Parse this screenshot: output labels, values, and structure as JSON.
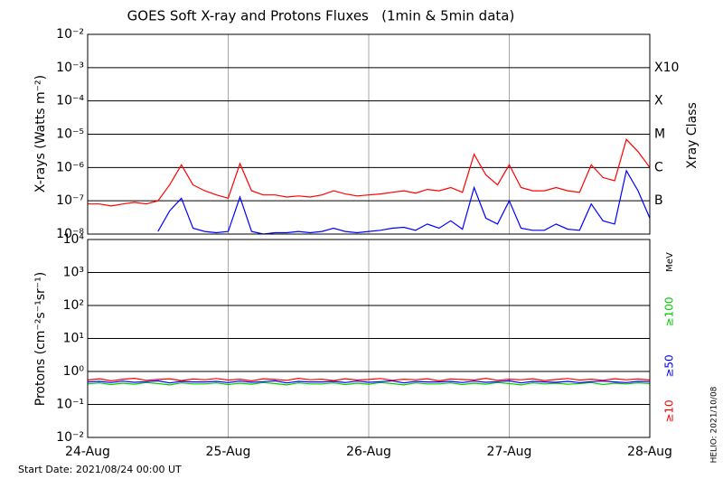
{
  "chart_data": [
    {
      "type": "line",
      "title": "GOES Soft X-ray and Protons Fluxes   (1min & 5min data)",
      "y_label": "X-rays (Watts m⁻²)",
      "y2_label": "Xray Class",
      "log_y": true,
      "grid": true,
      "xlim": [
        "2021-08-24 00:00",
        "2021-08-28 00:00"
      ],
      "xticks": [
        "2021-08-24 00:00",
        "2021-08-25 00:00",
        "2021-08-26 00:00",
        "2021-08-27 00:00",
        "2021-08-28 00:00"
      ],
      "ylim": [
        1e-08,
        0.01
      ],
      "yticks": [
        {
          "value": 1e-08,
          "label": "10⁻⁸"
        },
        {
          "value": 1e-07,
          "label": "10⁻⁷"
        },
        {
          "value": 1e-06,
          "label": "10⁻⁶"
        },
        {
          "value": 1e-05,
          "label": "10⁻⁵"
        },
        {
          "value": 0.0001,
          "label": "10⁻⁴"
        },
        {
          "value": 0.001,
          "label": "10⁻³"
        },
        {
          "value": 0.01,
          "label": "10⁻²"
        }
      ],
      "annotations": [
        {
          "value": 0.001,
          "label": "X10"
        },
        {
          "value": 0.0001,
          "label": "X"
        },
        {
          "value": 1e-05,
          "label": "M"
        },
        {
          "value": 1e-06,
          "label": "C"
        },
        {
          "value": 1e-07,
          "label": "B"
        }
      ],
      "x": [
        "2021-08-24 00:00",
        "2021-08-24 02:00",
        "2021-08-24 04:00",
        "2021-08-24 06:00",
        "2021-08-24 08:00",
        "2021-08-24 10:00",
        "2021-08-24 12:00",
        "2021-08-24 14:00",
        "2021-08-24 16:00",
        "2021-08-24 18:00",
        "2021-08-24 20:00",
        "2021-08-24 22:00",
        "2021-08-25 00:00",
        "2021-08-25 02:00",
        "2021-08-25 04:00",
        "2021-08-25 06:00",
        "2021-08-25 08:00",
        "2021-08-25 10:00",
        "2021-08-25 12:00",
        "2021-08-25 14:00",
        "2021-08-25 16:00",
        "2021-08-25 18:00",
        "2021-08-25 20:00",
        "2021-08-25 22:00",
        "2021-08-26 00:00",
        "2021-08-26 02:00",
        "2021-08-26 04:00",
        "2021-08-26 06:00",
        "2021-08-26 08:00",
        "2021-08-26 10:00",
        "2021-08-26 12:00",
        "2021-08-26 14:00",
        "2021-08-26 16:00",
        "2021-08-26 18:00",
        "2021-08-26 20:00",
        "2021-08-26 22:00",
        "2021-08-27 00:00",
        "2021-08-27 02:00",
        "2021-08-27 04:00",
        "2021-08-27 06:00",
        "2021-08-27 08:00",
        "2021-08-27 10:00",
        "2021-08-27 12:00",
        "2021-08-27 14:00",
        "2021-08-27 16:00",
        "2021-08-27 18:00",
        "2021-08-27 20:00",
        "2021-08-27 22:00",
        "2021-08-28 00:00"
      ],
      "series": [
        {
          "color": "#ff0000",
          "values": [
            8e-08,
            8e-08,
            7e-08,
            8e-08,
            9e-08,
            8e-08,
            1e-07,
            3e-07,
            1.2e-06,
            3e-07,
            2e-07,
            1.5e-07,
            1.2e-07,
            1.3e-06,
            2e-07,
            1.5e-07,
            1.5e-07,
            1.3e-07,
            1.4e-07,
            1.3e-07,
            1.5e-07,
            2e-07,
            1.6e-07,
            1.4e-07,
            1.5e-07,
            1.6e-07,
            1.8e-07,
            2e-07,
            1.7e-07,
            2.2e-07,
            2e-07,
            2.5e-07,
            1.8e-07,
            2.5e-06,
            6e-07,
            3e-07,
            1.2e-06,
            2.5e-07,
            2e-07,
            2e-07,
            2.5e-07,
            2e-07,
            1.8e-07,
            1.2e-06,
            5e-07,
            4e-07,
            7e-06,
            3e-06,
            1e-06
          ]
        },
        {
          "color": "#0000ff",
          "values": [
            null,
            null,
            null,
            null,
            null,
            null,
            1.2e-08,
            5e-08,
            1.2e-07,
            1.5e-08,
            1.2e-08,
            1.1e-08,
            1.2e-08,
            1.3e-07,
            1.2e-08,
            1e-08,
            1.1e-08,
            1.1e-08,
            1.2e-08,
            1.1e-08,
            1.2e-08,
            1.5e-08,
            1.2e-08,
            1.1e-08,
            1.2e-08,
            1.3e-08,
            1.5e-08,
            1.6e-08,
            1.3e-08,
            2e-08,
            1.5e-08,
            2.5e-08,
            1.4e-08,
            2.5e-07,
            3e-08,
            2e-08,
            1e-07,
            1.5e-08,
            1.3e-08,
            1.3e-08,
            2e-08,
            1.4e-08,
            1.3e-08,
            8e-08,
            2.5e-08,
            2e-08,
            8e-07,
            2e-07,
            3e-08
          ]
        }
      ]
    },
    {
      "type": "line",
      "y_label": "Protons (cm⁻²s⁻¹sr⁻¹)",
      "legend_units": "MeV",
      "log_y": true,
      "grid": true,
      "threshold": 10,
      "xlim": [
        "2021-08-24 00:00",
        "2021-08-28 00:00"
      ],
      "xticks": [
        {
          "value": "2021-08-24 00:00",
          "label": "24-Aug"
        },
        {
          "value": "2021-08-25 00:00",
          "label": "25-Aug"
        },
        {
          "value": "2021-08-26 00:00",
          "label": "26-Aug"
        },
        {
          "value": "2021-08-27 00:00",
          "label": "27-Aug"
        },
        {
          "value": "2021-08-28 00:00",
          "label": "28-Aug"
        }
      ],
      "ylim": [
        0.01,
        10000
      ],
      "yticks": [
        {
          "value": 0.01,
          "label": "10⁻²"
        },
        {
          "value": 0.1,
          "label": "10⁻¹"
        },
        {
          "value": 1,
          "label": "10⁰"
        },
        {
          "value": 10,
          "label": "10¹"
        },
        {
          "value": 100,
          "label": "10²"
        },
        {
          "value": 1000,
          "label": "10³"
        },
        {
          "value": 10000,
          "label": "10⁴"
        }
      ],
      "x": [
        "2021-08-24 00:00",
        "2021-08-24 02:00",
        "2021-08-24 04:00",
        "2021-08-24 06:00",
        "2021-08-24 08:00",
        "2021-08-24 10:00",
        "2021-08-24 12:00",
        "2021-08-24 14:00",
        "2021-08-24 16:00",
        "2021-08-24 18:00",
        "2021-08-24 20:00",
        "2021-08-24 22:00",
        "2021-08-25 00:00",
        "2021-08-25 02:00",
        "2021-08-25 04:00",
        "2021-08-25 06:00",
        "2021-08-25 08:00",
        "2021-08-25 10:00",
        "2021-08-25 12:00",
        "2021-08-25 14:00",
        "2021-08-25 16:00",
        "2021-08-25 18:00",
        "2021-08-25 20:00",
        "2021-08-25 22:00",
        "2021-08-26 00:00",
        "2021-08-26 02:00",
        "2021-08-26 04:00",
        "2021-08-26 06:00",
        "2021-08-26 08:00",
        "2021-08-26 10:00",
        "2021-08-26 12:00",
        "2021-08-26 14:00",
        "2021-08-26 16:00",
        "2021-08-26 18:00",
        "2021-08-26 20:00",
        "2021-08-26 22:00",
        "2021-08-27 00:00",
        "2021-08-27 02:00",
        "2021-08-27 04:00",
        "2021-08-27 06:00",
        "2021-08-27 08:00",
        "2021-08-27 10:00",
        "2021-08-27 12:00",
        "2021-08-27 14:00",
        "2021-08-27 16:00",
        "2021-08-27 18:00",
        "2021-08-27 20:00",
        "2021-08-27 22:00",
        "2021-08-28 00:00"
      ],
      "series": [
        {
          "name": "≥100",
          "color": "#00cc00",
          "values": [
            0.42,
            0.45,
            0.4,
            0.44,
            0.41,
            0.46,
            0.43,
            0.39,
            0.45,
            0.42,
            0.42,
            0.45,
            0.4,
            0.44,
            0.41,
            0.46,
            0.43,
            0.39,
            0.45,
            0.42,
            0.42,
            0.45,
            0.4,
            0.44,
            0.41,
            0.46,
            0.43,
            0.39,
            0.45,
            0.42,
            0.42,
            0.45,
            0.4,
            0.44,
            0.41,
            0.46,
            0.43,
            0.39,
            0.45,
            0.42,
            0.44,
            0.41,
            0.43,
            0.46,
            0.4,
            0.44,
            0.42,
            0.45,
            0.43
          ]
        },
        {
          "name": "≥50",
          "color": "#0000ff",
          "values": [
            0.48,
            0.5,
            0.46,
            0.51,
            0.47,
            0.49,
            0.52,
            0.45,
            0.5,
            0.48,
            0.48,
            0.5,
            0.46,
            0.51,
            0.47,
            0.49,
            0.52,
            0.45,
            0.5,
            0.48,
            0.48,
            0.5,
            0.46,
            0.51,
            0.47,
            0.49,
            0.52,
            0.45,
            0.5,
            0.48,
            0.48,
            0.5,
            0.46,
            0.51,
            0.47,
            0.49,
            0.52,
            0.45,
            0.5,
            0.48,
            0.47,
            0.5,
            0.46,
            0.49,
            0.51,
            0.48,
            0.46,
            0.5,
            0.49
          ]
        },
        {
          "name": "≥10",
          "color": "#ff0000",
          "values": [
            0.55,
            0.6,
            0.52,
            0.58,
            0.62,
            0.54,
            0.57,
            0.6,
            0.53,
            0.59,
            0.56,
            0.61,
            0.55,
            0.58,
            0.52,
            0.6,
            0.57,
            0.54,
            0.62,
            0.56,
            0.58,
            0.53,
            0.6,
            0.55,
            0.57,
            0.61,
            0.54,
            0.58,
            0.56,
            0.6,
            0.52,
            0.59,
            0.57,
            0.55,
            0.62,
            0.54,
            0.58,
            0.56,
            0.6,
            0.53,
            0.57,
            0.61,
            0.55,
            0.58,
            0.54,
            0.6,
            0.56,
            0.59,
            0.55
          ]
        }
      ]
    }
  ],
  "footer": {
    "start_date": "Start Date: 2021/08/24 00:00 UT",
    "helio": "HELIO: 2021/10/08"
  }
}
